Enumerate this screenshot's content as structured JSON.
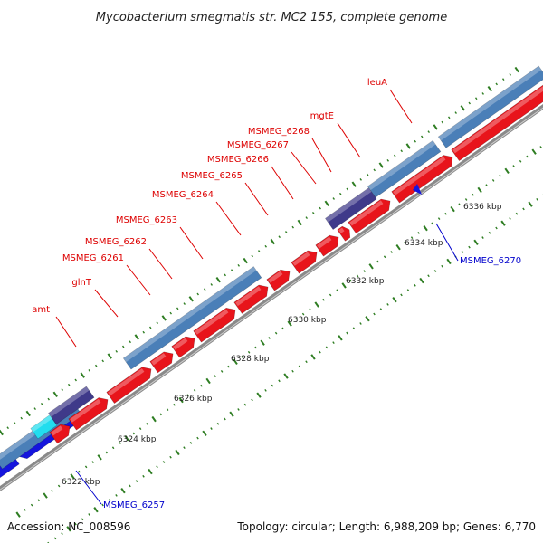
{
  "title": "Mycobacterium smegmatis str. MC2 155, complete genome",
  "footer": {
    "accession": "Accession: NC_008596",
    "summary": "Topology: circular; Length: 6,988,209 bp; Genes: 6,770"
  },
  "colors": {
    "forward_gene": "#e8141b",
    "reverse_gene": "#1515dd",
    "feature_steelblue": "#4a7fb8",
    "feature_purple": "#3f3a8a",
    "feature_cyan": "#22ddee",
    "backbone": "#8a8a8a",
    "tick_green": "#2e7d22",
    "label_red": "#dd0000",
    "label_blue": "#0000cc"
  },
  "scale_labels": [
    "6322 kbp",
    "6324 kbp",
    "6326 kbp",
    "6328 kbp",
    "6330 kbp",
    "6332 kbp",
    "6334 kbp",
    "6336 kbp"
  ],
  "gene_labels_red": [
    "amt",
    "glnT",
    "MSMEG_6261",
    "MSMEG_6262",
    "MSMEG_6263",
    "MSMEG_6264",
    "MSMEG_6265",
    "MSMEG_6266",
    "MSMEG_6267",
    "MSMEG_6268",
    "mgtE",
    "leuA"
  ],
  "gene_labels_blue": [
    "MSMEG_6257",
    "MSMEG_6270"
  ]
}
